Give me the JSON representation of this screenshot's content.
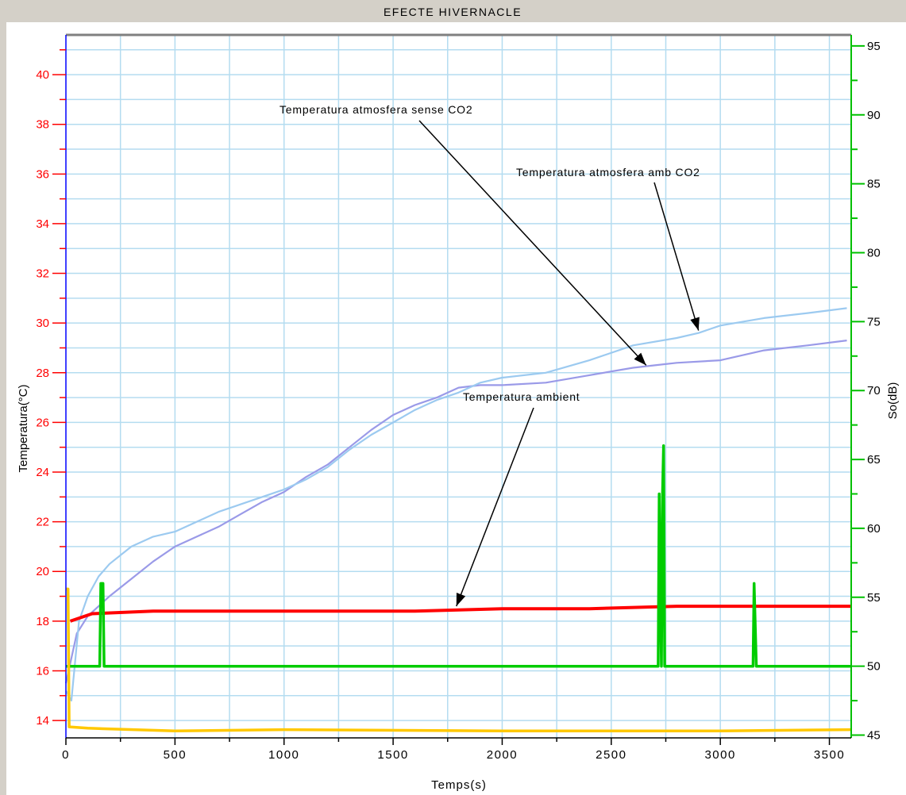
{
  "window_title": "EFECTE HIVERNACLE",
  "colors": {
    "frame": "#d4d0c8",
    "plot_bg": "#ffffff",
    "grid": "#b4dcf0",
    "left_axis": "#ff0000",
    "right_axis": "#00c000",
    "left_spine": "#0000ff",
    "series_sense_co2": "#9a9ae8",
    "series_amb_co2": "#9ccaf0",
    "series_ambient": "#ff0000",
    "series_so": "#00cc00",
    "series_yellow": "#ffc800",
    "annotation": "#000000"
  },
  "chart_data": {
    "type": "line",
    "title": "EFECTE HIVERNACLE",
    "xlabel": "Temps(s)",
    "ylabel": "Temperatura(°C)",
    "y2label": "So(dB)",
    "xlim": [
      0,
      3600
    ],
    "ylim": [
      13.3,
      41.6
    ],
    "y2lim": [
      44.8,
      95.8
    ],
    "x_ticks": [
      0,
      500,
      1000,
      1500,
      2000,
      2500,
      3000,
      3500
    ],
    "x_tick_labels": [
      "0",
      "500",
      "1000",
      "1500",
      "2000",
      "2500",
      "3000",
      "3500"
    ],
    "y_ticks": [
      14,
      16,
      18,
      20,
      22,
      24,
      26,
      28,
      30,
      32,
      34,
      36,
      38,
      40
    ],
    "y_tick_labels": [
      "14",
      "16",
      "18",
      "20",
      "22",
      "24",
      "26",
      "28",
      "30",
      "32",
      "34",
      "36",
      "38",
      "40"
    ],
    "y2_ticks": [
      45,
      50,
      55,
      60,
      65,
      70,
      75,
      80,
      85,
      90,
      95
    ],
    "y2_tick_labels": [
      "45",
      "50",
      "55",
      "60",
      "65",
      "70",
      "75",
      "80",
      "85",
      "90",
      "95"
    ],
    "grid": true,
    "series": [
      {
        "key": "sense_co2",
        "axis": "left",
        "x": [
          0,
          50,
          100,
          150,
          200,
          300,
          400,
          500,
          600,
          700,
          800,
          900,
          1000,
          1100,
          1200,
          1300,
          1400,
          1500,
          1600,
          1700,
          1800,
          1900,
          2000,
          2200,
          2400,
          2600,
          2700,
          2800,
          3000,
          3200,
          3400,
          3580
        ],
        "y": [
          15.5,
          17.5,
          18.2,
          18.6,
          19.0,
          19.7,
          20.4,
          21.0,
          21.4,
          21.8,
          22.3,
          22.8,
          23.2,
          23.8,
          24.3,
          25.0,
          25.7,
          26.3,
          26.7,
          27.0,
          27.4,
          27.5,
          27.5,
          27.6,
          27.9,
          28.2,
          28.3,
          28.4,
          28.5,
          28.9,
          29.1,
          29.3
        ]
      },
      {
        "key": "amb_co2",
        "axis": "left",
        "x": [
          0,
          25,
          60,
          100,
          150,
          200,
          300,
          400,
          500,
          600,
          700,
          800,
          900,
          1000,
          1100,
          1200,
          1300,
          1400,
          1500,
          1600,
          1700,
          1800,
          1900,
          2000,
          2200,
          2400,
          2600,
          2800,
          2900,
          3000,
          3200,
          3400,
          3580
        ],
        "y": [
          15.2,
          14.8,
          18.0,
          19.0,
          19.8,
          20.3,
          21.0,
          21.4,
          21.6,
          22.0,
          22.4,
          22.7,
          23.0,
          23.3,
          23.7,
          24.2,
          24.9,
          25.5,
          26.0,
          26.5,
          26.9,
          27.2,
          27.6,
          27.8,
          28.0,
          28.5,
          29.1,
          29.4,
          29.6,
          29.9,
          30.2,
          30.4,
          30.6
        ]
      },
      {
        "key": "ambient",
        "axis": "left",
        "x": [
          20,
          120,
          400,
          800,
          1200,
          1600,
          2000,
          2400,
          2800,
          3200,
          3600
        ],
        "y": [
          18.0,
          18.3,
          18.4,
          18.4,
          18.4,
          18.4,
          18.5,
          18.5,
          18.6,
          18.6,
          18.6
        ]
      },
      {
        "key": "so",
        "axis": "right",
        "x": [
          0,
          155,
          160,
          170,
          175,
          2715,
          2720,
          2730,
          2735,
          2740,
          2745,
          2750,
          3150,
          3155,
          3165,
          3170,
          3600
        ],
        "y": [
          50,
          50,
          56,
          56,
          50,
          50,
          62.5,
          50,
          62.5,
          66,
          50,
          50,
          50,
          56,
          50,
          50,
          50
        ]
      },
      {
        "key": "yellow",
        "axis": "right",
        "x": [
          0,
          10,
          15,
          100,
          500,
          1000,
          2000,
          3000,
          3600
        ],
        "y": [
          55.6,
          55.6,
          45.6,
          45.5,
          45.3,
          45.4,
          45.3,
          45.3,
          45.4
        ]
      }
    ],
    "annotations": [
      {
        "key": "sense_co2",
        "text": "Temperatura atmosfera sense CO2",
        "target_x": 2660,
        "target_y": 28.3
      },
      {
        "key": "amb_co2",
        "text": "Temperatura atmosfera amb CO2",
        "target_x": 2900,
        "target_y": 29.7
      },
      {
        "key": "ambient",
        "text": "Temperatura ambient",
        "target_x": 1790,
        "target_y": 18.6
      }
    ]
  }
}
